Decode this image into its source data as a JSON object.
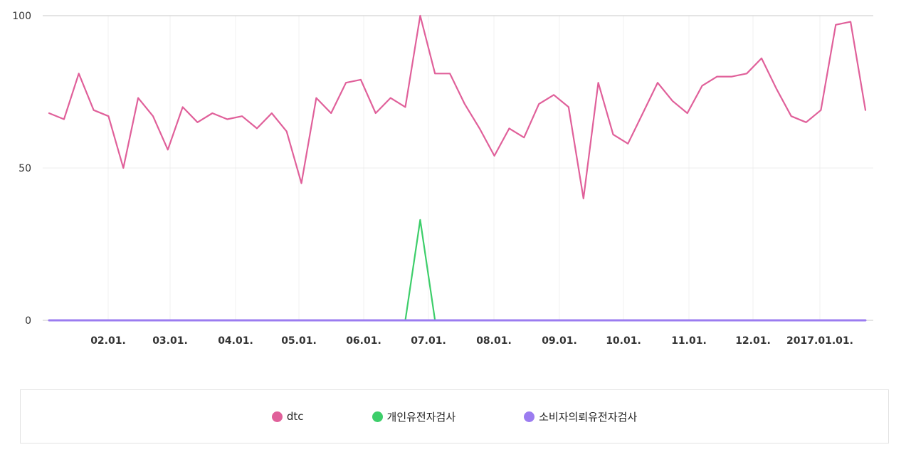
{
  "chart_data": {
    "type": "line",
    "title": "",
    "xlabel": "",
    "ylabel": "",
    "ylim": [
      0,
      100
    ],
    "yticks": [
      "0",
      "50",
      "100"
    ],
    "x_tick_labels": [
      "02.01.",
      "03.01.",
      "04.01.",
      "05.01.",
      "06.01.",
      "07.01.",
      "08.01.",
      "09.01.",
      "10.01.",
      "11.01.",
      "12.01.",
      "2017.01.01."
    ],
    "grid": true,
    "legend_position": "bottom",
    "series": [
      {
        "name": "dtc",
        "color": "#e0609a",
        "values": [
          68,
          66,
          81,
          69,
          67,
          50,
          73,
          67,
          56,
          70,
          65,
          68,
          66,
          67,
          63,
          68,
          62,
          45,
          73,
          68,
          78,
          79,
          68,
          73,
          70,
          100,
          81,
          81,
          71,
          63,
          54,
          63,
          60,
          71,
          74,
          70,
          40,
          78,
          61,
          58,
          68,
          78,
          72,
          68,
          77,
          80,
          80,
          81,
          86,
          76,
          67,
          65,
          69,
          97,
          98,
          69
        ]
      },
      {
        "name": "개인유전자검사",
        "color": "#3dce6a",
        "values": [
          0,
          0,
          0,
          0,
          0,
          0,
          0,
          0,
          0,
          0,
          0,
          0,
          0,
          0,
          0,
          0,
          0,
          0,
          0,
          0,
          0,
          0,
          0,
          0,
          0,
          33,
          0,
          0,
          0,
          0,
          0,
          0,
          0,
          0,
          0,
          0,
          0,
          0,
          0,
          0,
          0,
          0,
          0,
          0,
          0,
          0,
          0,
          0,
          0,
          0,
          0,
          0,
          0,
          0,
          0,
          0
        ]
      },
      {
        "name": "소비자의뢰유전자검사",
        "color": "#9b7cf0",
        "values": [
          0,
          0,
          0,
          0,
          0,
          0,
          0,
          0,
          0,
          0,
          0,
          0,
          0,
          0,
          0,
          0,
          0,
          0,
          0,
          0,
          0,
          0,
          0,
          0,
          0,
          0,
          0,
          0,
          0,
          0,
          0,
          0,
          0,
          0,
          0,
          0,
          0,
          0,
          0,
          0,
          0,
          0,
          0,
          0,
          0,
          0,
          0,
          0,
          0,
          0,
          0,
          0,
          0,
          0,
          0,
          0
        ]
      }
    ]
  }
}
